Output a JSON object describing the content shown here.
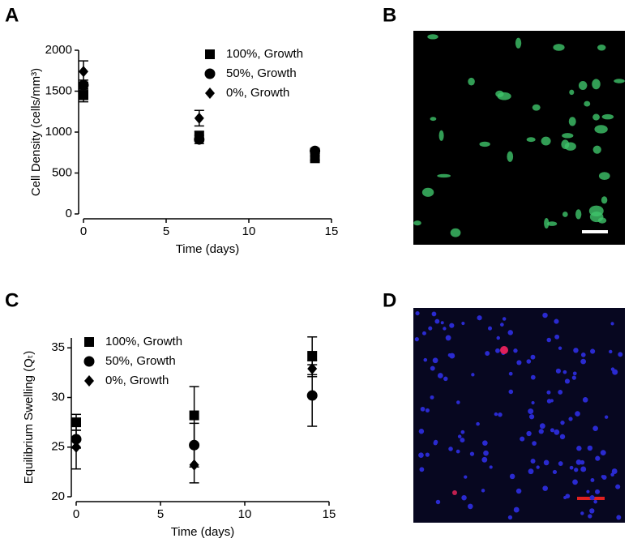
{
  "chart_data": [
    {
      "type": "scatter",
      "panel": "A",
      "x_label": "Time (days)",
      "y_label": "Cell Density (cells/mm³)",
      "x": [
        0,
        7,
        14
      ],
      "xlim": [
        0,
        15
      ],
      "xticks": [
        0,
        5,
        10,
        15
      ],
      "ylim": [
        0,
        2000
      ],
      "yticks": [
        0,
        500,
        1000,
        1500,
        2000
      ],
      "legend": "upper right",
      "series": [
        {
          "name": "100%, Growth",
          "marker": "square",
          "color": "#000000",
          "values": [
            1450,
            950,
            680
          ],
          "errors": [
            80,
            60,
            30
          ]
        },
        {
          "name": "50%, Growth",
          "marker": "circle",
          "color": "#000000",
          "values": [
            1575,
            910,
            770
          ],
          "errors": [
            60,
            50,
            30
          ]
        },
        {
          "name": "0%, Growth",
          "marker": "diamond",
          "color": "#000000",
          "values": [
            1740,
            1170,
            700
          ],
          "errors": [
            130,
            95,
            40
          ]
        }
      ]
    },
    {
      "type": "scatter",
      "panel": "C",
      "x_label": "Time (days)",
      "y_label": "Equilibrium Swelling (Qₜ)",
      "x": [
        0,
        7,
        14
      ],
      "xlim": [
        0,
        15
      ],
      "xticks": [
        0,
        5,
        10,
        15
      ],
      "ylim": [
        20,
        36
      ],
      "yticks": [
        20,
        25,
        30,
        35
      ],
      "legend": "upper left",
      "series": [
        {
          "name": "100%, Growth",
          "marker": "square",
          "color": "#000000",
          "values": [
            27.5,
            28.2,
            34.2
          ],
          "errors": [
            0.8,
            2.9,
            1.9
          ]
        },
        {
          "name": "50%, Growth",
          "marker": "circle",
          "color": "#000000",
          "values": [
            25.8,
            25.2,
            30.2
          ],
          "errors": [
            0.9,
            2.2,
            3.1
          ]
        },
        {
          "name": "0%, Growth",
          "marker": "diamond",
          "color": "#000000",
          "values": [
            25.0,
            23.2,
            32.9
          ],
          "errors": [
            2.2,
            1.8,
            0.8
          ]
        }
      ]
    }
  ],
  "images": [
    {
      "panel": "B"
    },
    {
      "panel": "D"
    }
  ]
}
